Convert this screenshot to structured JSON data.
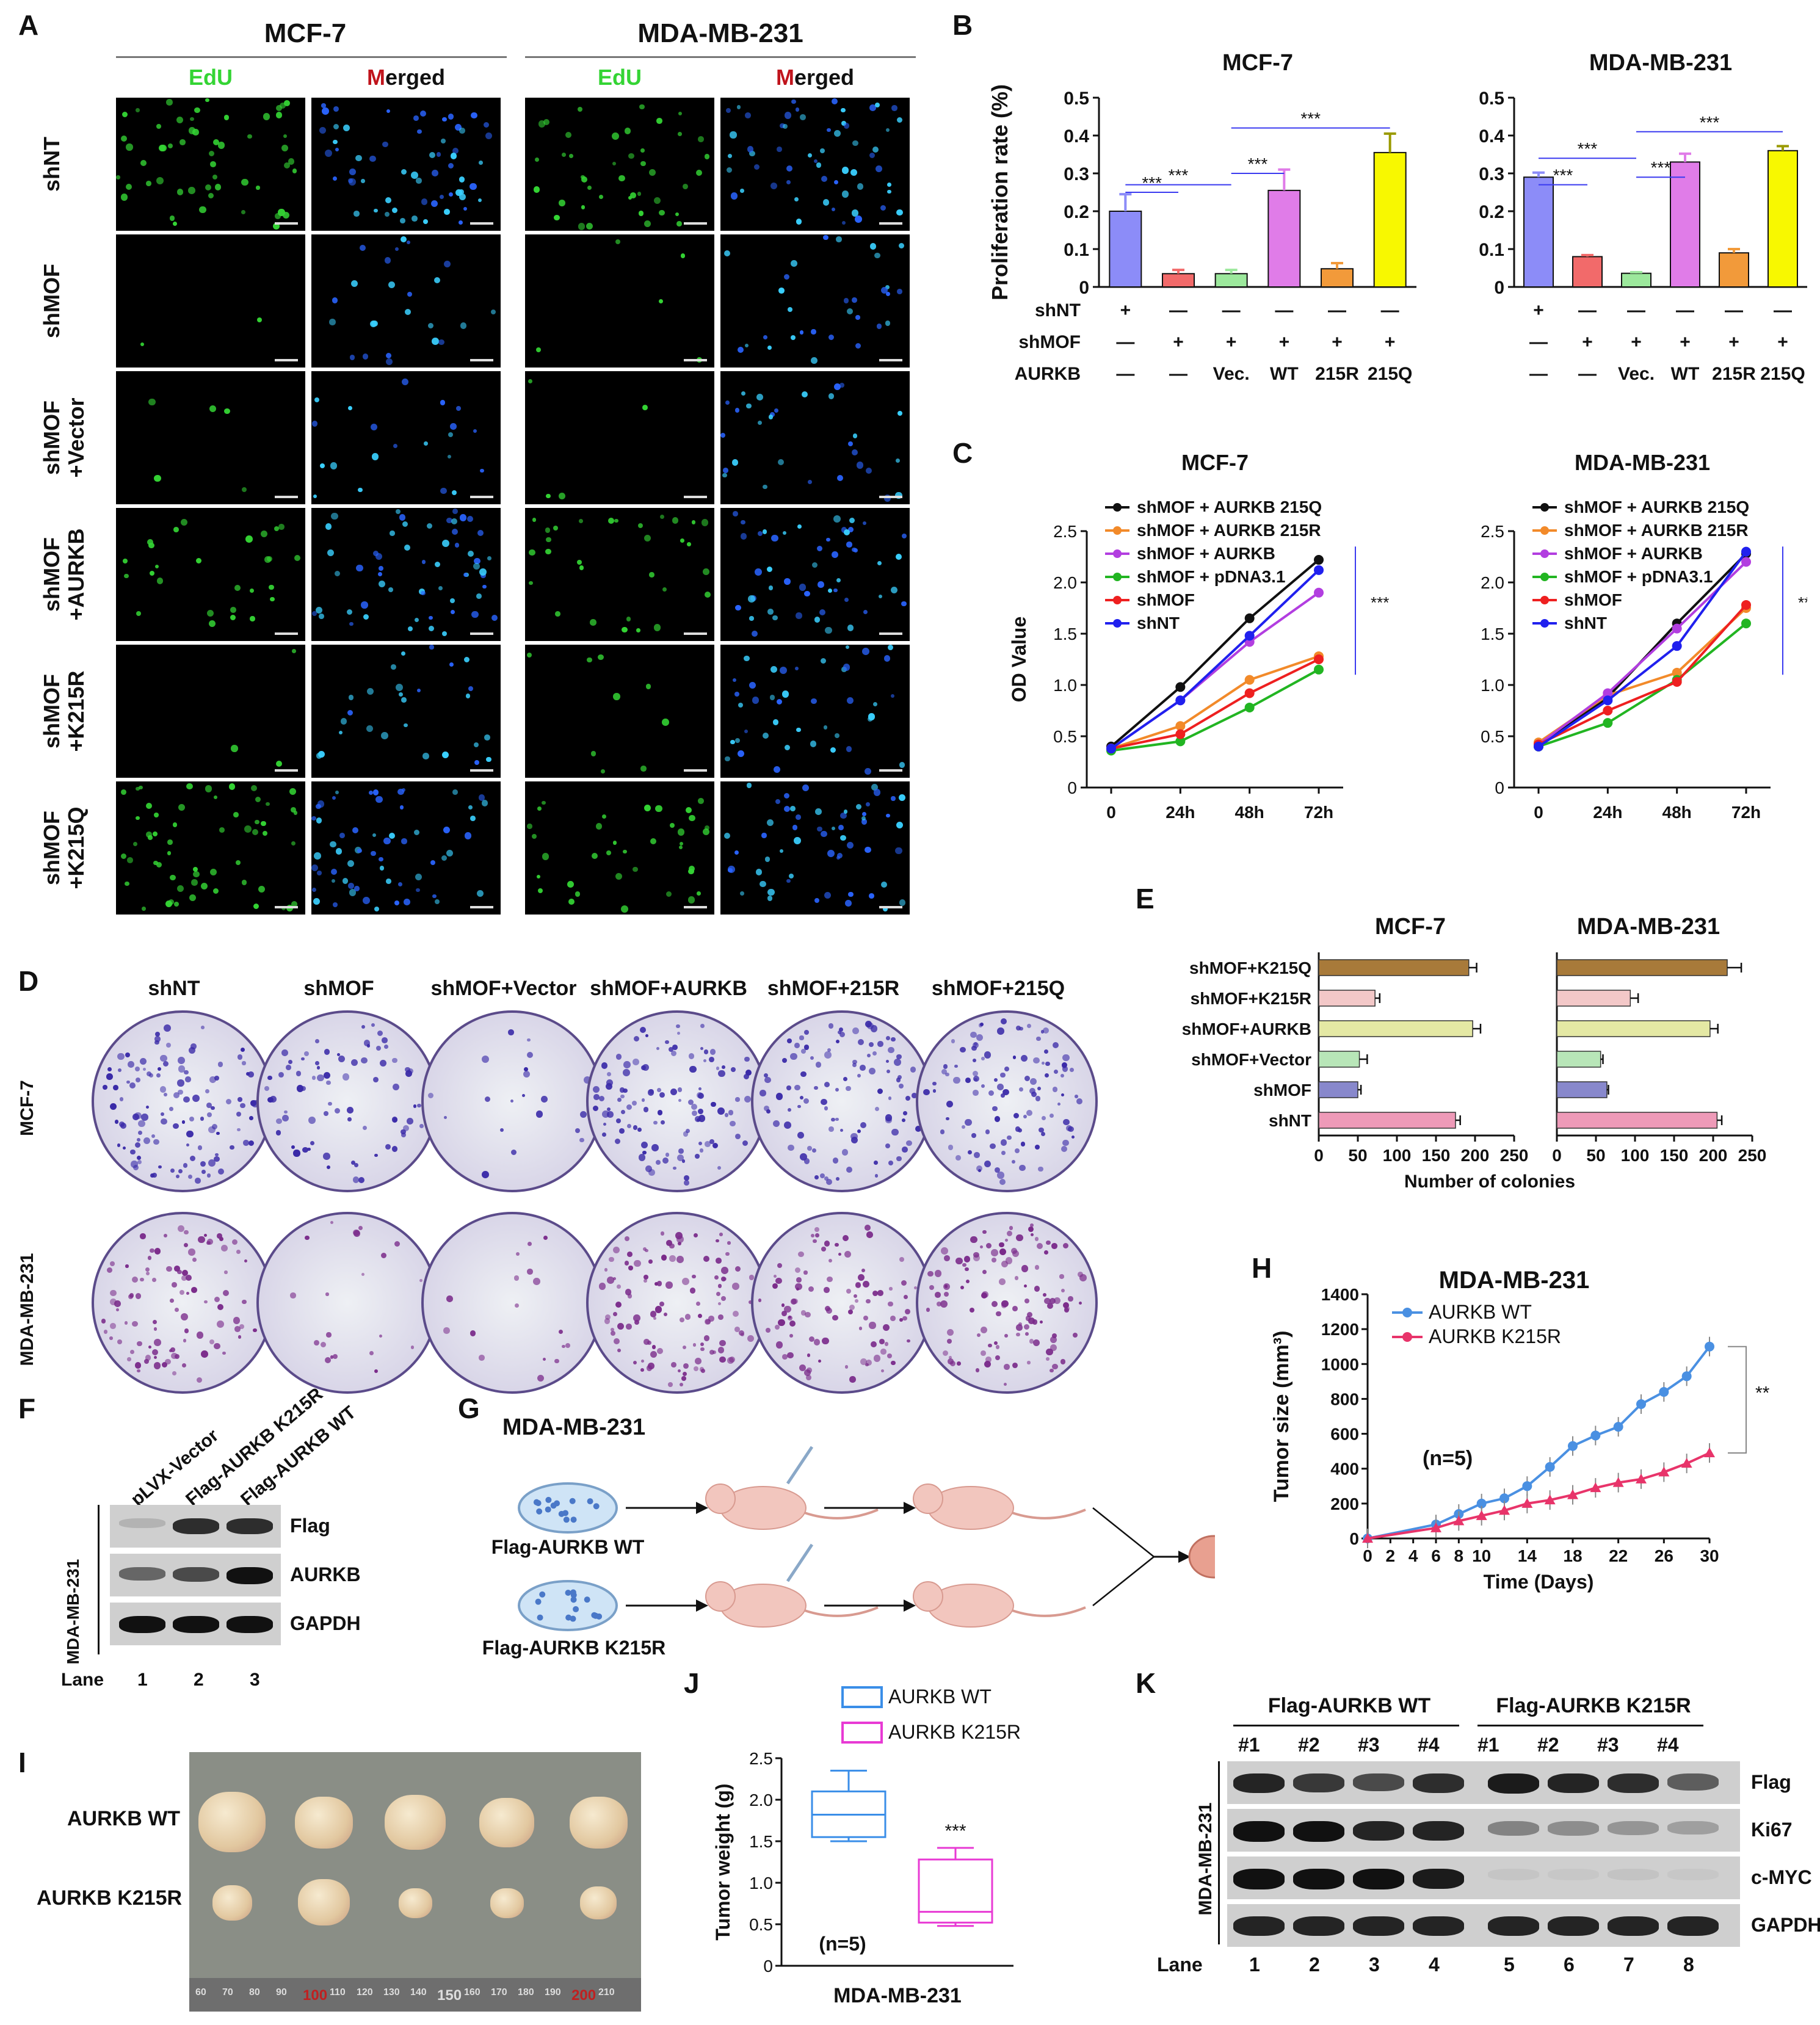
{
  "panels": {
    "A": "A",
    "B": "B",
    "C": "C",
    "D": "D",
    "E": "E",
    "F": "F",
    "G": "G",
    "H": "H",
    "I": "I",
    "J": "J",
    "K": "K"
  },
  "panelA": {
    "cells": [
      "MCF-7",
      "MDA-MB-231"
    ],
    "channels": [
      {
        "first": "EdU",
        "rest": ""
      },
      {
        "first": "M",
        "rest": "erged"
      }
    ],
    "rows": [
      {
        "l1": "shNT",
        "l2": "",
        "levels": [
          0.9,
          1.0,
          0.7,
          0.95
        ]
      },
      {
        "l1": "shMOF",
        "l2": "",
        "levels": [
          0.03,
          0.4,
          0.08,
          0.5
        ]
      },
      {
        "l1": "shMOF",
        "l2": "+Vector",
        "levels": [
          0.08,
          0.35,
          0.06,
          0.5
        ]
      },
      {
        "l1": "shMOF",
        "l2": "+AURKB",
        "levels": [
          0.45,
          0.95,
          0.5,
          0.85
        ]
      },
      {
        "l1": "shMOF",
        "l2": "+K215R",
        "levels": [
          0.05,
          0.45,
          0.15,
          0.7
        ]
      },
      {
        "l1": "shMOF",
        "l2": "+K215Q",
        "levels": [
          0.95,
          1.0,
          0.6,
          0.95
        ]
      }
    ],
    "colors": {
      "edu": "#34d434",
      "merged": "#2a64ff",
      "merged_label": "#c0141c"
    }
  },
  "panelB": {
    "ylabel": "Proliferation rate (%)",
    "row_labels": [
      "shNT",
      "shMOF",
      "AURKB"
    ],
    "groups": [
      {
        "cond": [
          "+",
          "—",
          "—",
          "—",
          "—",
          "—"
        ]
      },
      {
        "cond": [
          "—",
          "+",
          "+",
          "+",
          "+",
          "+"
        ]
      },
      {
        "cond": [
          "—",
          "—",
          "Vec.",
          "WT",
          "215R",
          "215Q"
        ]
      }
    ],
    "sig": "***",
    "bar_colors": [
      "#8c8cf8",
      "#f26a6a",
      "#9ce89c",
      "#e07ce8",
      "#f29a3a",
      "#f8f800"
    ]
  },
  "panelC": {
    "ylabel": "OD Value",
    "legend": [
      "shMOF + AURKB 215Q",
      "shMOF + AURKB 215R",
      "shMOF + AURKB",
      "shMOF + pDNA3.1",
      "shMOF",
      "shNT"
    ],
    "sig": "***",
    "colors": [
      "#111111",
      "#f28a2a",
      "#b23ee0",
      "#22b522",
      "#ee2020",
      "#2020ee"
    ]
  },
  "panelD": {
    "cols": [
      "shNT",
      "shMOF",
      "shMOF+Vector",
      "shMOF+AURKB",
      "shMOF+215R",
      "shMOF+215Q"
    ],
    "rows": [
      "MCF-7",
      "MDA-MB-231"
    ],
    "density": [
      [
        0.85,
        0.55,
        0.15,
        0.8,
        0.75,
        0.8
      ],
      [
        0.7,
        0.15,
        0.12,
        0.85,
        0.7,
        0.85
      ]
    ]
  },
  "panelE": {
    "categories": [
      "shMOF+K215Q",
      "shMOF+K215R",
      "shMOF+AURKB",
      "shMOF+Vector",
      "shMOF",
      "shNT"
    ],
    "xlabel": "Number of colonies",
    "colors": [
      "#a87a3a",
      "#f3c8c8",
      "#e4e8a4",
      "#b8e6b8",
      "#8888cc",
      "#ee9ab8"
    ]
  },
  "panelF": {
    "lanes": [
      "pLVX-Vector",
      "Flag-AURKB K215R",
      "Flag-AURKB WT"
    ],
    "bands": [
      "Flag",
      "AURKB",
      "GAPDH"
    ],
    "side": "MDA-MB-231",
    "lane_label": "Lane",
    "lane_numbers": [
      "1",
      "2",
      "3"
    ],
    "intensity": [
      [
        0.15,
        0.85,
        0.85
      ],
      [
        0.55,
        0.7,
        1.0
      ],
      [
        1.0,
        1.0,
        1.0
      ]
    ]
  },
  "panelG": {
    "title": "MDA-MB-231",
    "top": "Flag-AURKB WT",
    "bottom": "Flag-AURKB K215R"
  },
  "panelH": {
    "title": "MDA-MB-231",
    "ylabel": "Tumor size (mm³)",
    "xlabel": "Time (Days)",
    "legend": [
      "AURKB WT",
      "AURKB K215R"
    ],
    "n_label": "(n=5)",
    "sig": "**",
    "colors": [
      "#4a90e2",
      "#e8346a"
    ]
  },
  "panelI": {
    "rows": [
      "AURKB WT",
      "AURKB K215R"
    ],
    "ruler": [
      "60",
      "70",
      "80",
      "90",
      "100",
      "110",
      "120",
      "130",
      "140",
      "150",
      "160",
      "170",
      "180",
      "190",
      "200",
      "210"
    ]
  },
  "panelJ": {
    "legend": [
      "AURKB WT",
      "AURKB K215R"
    ],
    "ylabel": "Tumor weight (g)",
    "xlabel": "MDA-MB-231",
    "n_label": "(n=5)",
    "sig": "***",
    "colors": [
      "#3a8ee8",
      "#e83ad4"
    ]
  },
  "panelK": {
    "groups": [
      "Flag-AURKB WT",
      "Flag-AURKB K215R"
    ],
    "samples": [
      "#1",
      "#2",
      "#3",
      "#4",
      "#1",
      "#2",
      "#3",
      "#4"
    ],
    "bands": [
      "Flag",
      "Ki67",
      "c-MYC",
      "GAPDH"
    ],
    "side": "MDA-MB-231",
    "lane_label": "Lane",
    "lane_numbers": [
      "1",
      "2",
      "3",
      "4",
      "5",
      "6",
      "7",
      "8"
    ],
    "intensity": [
      [
        0.9,
        0.8,
        0.7,
        0.85,
        0.95,
        0.9,
        0.85,
        0.6
      ],
      [
        1.0,
        1.0,
        0.9,
        0.9,
        0.4,
        0.35,
        0.3,
        0.25
      ],
      [
        1.0,
        1.0,
        1.0,
        0.95,
        0.05,
        0.04,
        0.06,
        0.04
      ],
      [
        0.9,
        0.9,
        0.9,
        0.9,
        0.9,
        0.9,
        0.9,
        0.9
      ]
    ]
  },
  "chart_data": [
    {
      "type": "bar",
      "title": "MCF-7",
      "ylabel": "Proliferation rate (%)",
      "ylim": [
        0,
        0.5
      ],
      "categories": [
        "shNT",
        "shMOF",
        "shMOF+Vec.",
        "shMOF+WT",
        "shMOF+215R",
        "shMOF+215Q"
      ],
      "values": [
        0.2,
        0.035,
        0.035,
        0.255,
        0.048,
        0.355
      ],
      "errors": [
        0.045,
        0.01,
        0.01,
        0.055,
        0.015,
        0.05
      ],
      "yticks": [
        "0",
        "0.1",
        "0.2",
        "0.3",
        "0.4",
        "0.5"
      ]
    },
    {
      "type": "bar",
      "title": "MDA-MB-231",
      "ylabel": "",
      "ylim": [
        0,
        0.5
      ],
      "categories": [
        "shNT",
        "shMOF",
        "shMOF+Vec.",
        "shMOF+WT",
        "shMOF+215R",
        "shMOF+215Q"
      ],
      "values": [
        0.29,
        0.08,
        0.036,
        0.33,
        0.09,
        0.36
      ],
      "errors": [
        0.012,
        0.004,
        0.003,
        0.022,
        0.01,
        0.012
      ],
      "yticks": [
        "0",
        "0.1",
        "0.2",
        "0.3",
        "0.4",
        "0.5"
      ]
    },
    {
      "type": "line",
      "title": "MCF-7",
      "ylabel": "OD Value",
      "x": [
        "0",
        "24h",
        "48h",
        "72h"
      ],
      "ylim": [
        0,
        2.5
      ],
      "yticks": [
        "0",
        "0.5",
        "1.0",
        "1.5",
        "2.0",
        "2.5"
      ],
      "series": [
        {
          "name": "shMOF + AURKB 215Q",
          "values": [
            0.4,
            0.98,
            1.65,
            2.22
          ]
        },
        {
          "name": "shMOF + AURKB 215R",
          "values": [
            0.38,
            0.6,
            1.05,
            1.28
          ]
        },
        {
          "name": "shMOF + AURKB",
          "values": [
            0.38,
            0.85,
            1.42,
            1.9
          ]
        },
        {
          "name": "shMOF + pDNA3.1",
          "values": [
            0.36,
            0.45,
            0.78,
            1.15
          ]
        },
        {
          "name": "shMOF",
          "values": [
            0.38,
            0.52,
            0.92,
            1.25
          ]
        },
        {
          "name": "shNT",
          "values": [
            0.38,
            0.85,
            1.48,
            2.12
          ]
        }
      ]
    },
    {
      "type": "line",
      "title": "MDA-MB-231",
      "ylabel": "",
      "x": [
        "0",
        "24h",
        "48h",
        "72h"
      ],
      "ylim": [
        0,
        2.5
      ],
      "yticks": [
        "0",
        "0.5",
        "1.0",
        "1.5",
        "2.0",
        "2.5"
      ],
      "series": [
        {
          "name": "shMOF + AURKB 215Q",
          "values": [
            0.4,
            0.88,
            1.6,
            2.28
          ]
        },
        {
          "name": "shMOF + AURKB 215R",
          "values": [
            0.44,
            0.9,
            1.12,
            1.75
          ]
        },
        {
          "name": "shMOF + AURKB",
          "values": [
            0.42,
            0.92,
            1.55,
            2.2
          ]
        },
        {
          "name": "shMOF + pDNA3.1",
          "values": [
            0.4,
            0.63,
            1.05,
            1.6
          ]
        },
        {
          "name": "shMOF",
          "values": [
            0.42,
            0.75,
            1.03,
            1.78
          ]
        },
        {
          "name": "shNT",
          "values": [
            0.4,
            0.85,
            1.38,
            2.3
          ]
        }
      ]
    },
    {
      "type": "bar",
      "orientation": "horizontal",
      "title": "MCF-7",
      "xlabel": "Number of colonies",
      "xlim": [
        0,
        250
      ],
      "xticks": [
        "0",
        "50",
        "100",
        "150",
        "200",
        "250"
      ],
      "categories": [
        "shMOF+K215Q",
        "shMOF+K215R",
        "shMOF+AURKB",
        "shMOF+Vector",
        "shMOF",
        "shNT"
      ],
      "values": [
        192,
        72,
        197,
        52,
        50,
        175
      ],
      "errors": [
        10,
        6,
        10,
        10,
        4,
        6
      ]
    },
    {
      "type": "bar",
      "orientation": "horizontal",
      "title": "MDA-MB-231",
      "xlabel": "Number of colonies",
      "xlim": [
        0,
        250
      ],
      "xticks": [
        "0",
        "50",
        "100",
        "150",
        "200",
        "250"
      ],
      "categories": [
        "shMOF+K215Q",
        "shMOF+K215R",
        "shMOF+AURKB",
        "shMOF+Vector",
        "shMOF",
        "shNT"
      ],
      "values": [
        218,
        94,
        196,
        56,
        64,
        205
      ],
      "errors": [
        18,
        10,
        10,
        3,
        2,
        6
      ]
    },
    {
      "type": "line",
      "title": "MDA-MB-231",
      "xlabel": "Time (Days)",
      "ylabel": "Tumor size (mm³)",
      "x": [
        0,
        6,
        8,
        10,
        12,
        14,
        16,
        18,
        20,
        22,
        24,
        26,
        28,
        30
      ],
      "xticks": [
        "0",
        "2",
        "4",
        "6",
        "8",
        "10",
        "14",
        "18",
        "22",
        "26",
        "30"
      ],
      "ylim": [
        0,
        1400
      ],
      "yticks": [
        "0",
        "200",
        "400",
        "600",
        "800",
        "1000",
        "1200",
        "1400"
      ],
      "series": [
        {
          "name": "AURKB WT",
          "values": [
            0,
            80,
            140,
            200,
            230,
            300,
            410,
            530,
            590,
            640,
            770,
            840,
            930,
            1100
          ]
        },
        {
          "name": "AURKB K215R",
          "values": [
            0,
            60,
            100,
            130,
            160,
            200,
            220,
            250,
            290,
            320,
            340,
            380,
            430,
            490
          ]
        }
      ]
    },
    {
      "type": "box",
      "ylabel": "Tumor weight (g)",
      "xlabel": "MDA-MB-231",
      "ylim": [
        0,
        2.5
      ],
      "yticks": [
        "0",
        "0.5",
        "1.0",
        "1.5",
        "2.0",
        "2.5"
      ],
      "series": [
        {
          "name": "AURKB WT",
          "min": 1.5,
          "q1": 1.55,
          "median": 1.82,
          "q3": 2.1,
          "max": 2.35
        },
        {
          "name": "AURKB K215R",
          "min": 0.48,
          "q1": 0.52,
          "median": 0.65,
          "q3": 1.28,
          "max": 1.42
        }
      ]
    }
  ]
}
